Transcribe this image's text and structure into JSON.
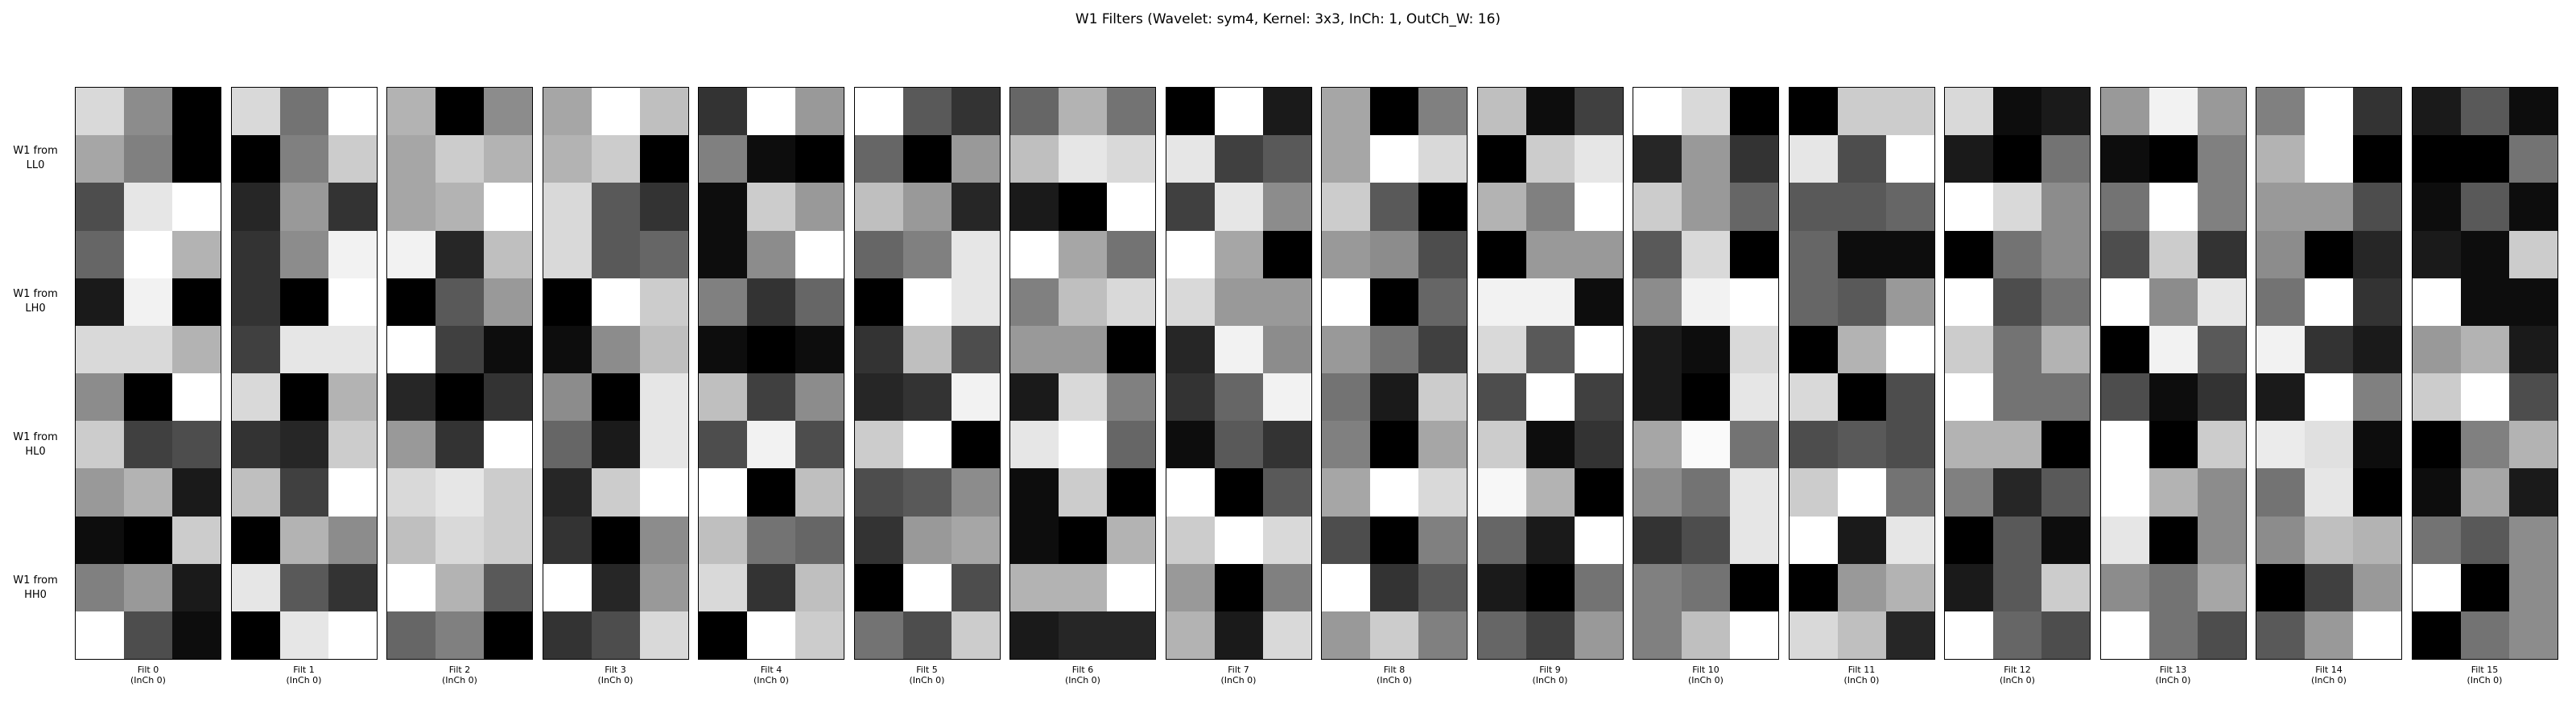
{
  "chart_data": {
    "type": "heatmap",
    "title": "W1 Filters (Wavelet: sym4, Kernel: 3x3, InCh: 1, OutCh_W: 16)",
    "colormap": "grayscale",
    "row_groups": [
      "W1 from\nLL0",
      "W1 from\nLH0",
      "W1 from\nHL0",
      "W1 from\nHH0"
    ],
    "filters": [
      {
        "label": "Filt 0",
        "sublabel": "(InCh 0)",
        "cells": [
          [
            0.85,
            0.55,
            0.0
          ],
          [
            0.65,
            0.5,
            0.0
          ],
          [
            0.3,
            0.9,
            1.0
          ],
          [
            0.4,
            1.0,
            0.7
          ],
          [
            0.1,
            0.95,
            0.0
          ],
          [
            0.85,
            0.85,
            0.7
          ],
          [
            0.55,
            0.0,
            1.0
          ],
          [
            0.8,
            0.25,
            0.3
          ],
          [
            0.6,
            0.7,
            0.1
          ],
          [
            0.05,
            0.0,
            0.8
          ],
          [
            0.5,
            0.6,
            0.1
          ],
          [
            1.0,
            0.3,
            0.05
          ]
        ]
      },
      {
        "label": "Filt 1",
        "sublabel": "(InCh 0)",
        "cells": [
          [
            0.85,
            0.45,
            1.0
          ],
          [
            0.0,
            0.5,
            0.8
          ],
          [
            0.15,
            0.6,
            0.2
          ],
          [
            0.2,
            0.55,
            0.95
          ],
          [
            0.2,
            0.0,
            1.0
          ],
          [
            0.25,
            0.9,
            0.9
          ],
          [
            0.85,
            0.0,
            0.7
          ],
          [
            0.2,
            0.15,
            0.8
          ],
          [
            0.75,
            0.25,
            1.0
          ],
          [
            0.0,
            0.7,
            0.55
          ],
          [
            0.9,
            0.35,
            0.2
          ],
          [
            0.0,
            0.9,
            1.0
          ]
        ]
      },
      {
        "label": "Filt 2",
        "sublabel": "(InCh 0)",
        "cells": [
          [
            0.7,
            0.0,
            0.55
          ],
          [
            0.65,
            0.8,
            0.7
          ],
          [
            0.65,
            0.7,
            1.0
          ],
          [
            0.95,
            0.15,
            0.75
          ],
          [
            0.0,
            0.35,
            0.6
          ],
          [
            1.0,
            0.25,
            0.05
          ],
          [
            0.15,
            0.0,
            0.2
          ],
          [
            0.6,
            0.2,
            1.0
          ],
          [
            0.85,
            0.9,
            0.8
          ],
          [
            0.75,
            0.85,
            0.8
          ],
          [
            1.0,
            0.7,
            0.35
          ],
          [
            0.4,
            0.5,
            0.0
          ]
        ]
      },
      {
        "label": "Filt 3",
        "sublabel": "(InCh 0)",
        "cells": [
          [
            0.65,
            1.0,
            0.75
          ],
          [
            0.7,
            0.8,
            0.0
          ],
          [
            0.85,
            0.35,
            0.2
          ],
          [
            0.85,
            0.35,
            0.4
          ],
          [
            0.0,
            1.0,
            0.8
          ],
          [
            0.05,
            0.55,
            0.75
          ],
          [
            0.55,
            0.0,
            0.9
          ],
          [
            0.4,
            0.1,
            0.9
          ],
          [
            0.15,
            0.8,
            1.0
          ],
          [
            0.2,
            0.0,
            0.55
          ],
          [
            1.0,
            0.15,
            0.6
          ],
          [
            0.2,
            0.3,
            0.85
          ]
        ]
      },
      {
        "label": "Filt 4",
        "sublabel": "(InCh 0)",
        "cells": [
          [
            0.2,
            1.0,
            0.6
          ],
          [
            0.5,
            0.05,
            0.0
          ],
          [
            0.05,
            0.8,
            0.6
          ],
          [
            0.05,
            0.55,
            1.0
          ],
          [
            0.5,
            0.2,
            0.4
          ],
          [
            0.05,
            0.0,
            0.05
          ],
          [
            0.75,
            0.25,
            0.55
          ],
          [
            0.3,
            0.95,
            0.3
          ],
          [
            1.0,
            0.0,
            0.75
          ],
          [
            0.75,
            0.45,
            0.4
          ],
          [
            0.85,
            0.2,
            0.75
          ],
          [
            0.0,
            1.0,
            0.8
          ]
        ]
      },
      {
        "label": "Filt 5",
        "sublabel": "(InCh 0)",
        "cells": [
          [
            1.0,
            0.35,
            0.2
          ],
          [
            0.4,
            0.0,
            0.6
          ],
          [
            0.75,
            0.6,
            0.15
          ],
          [
            0.4,
            0.5,
            0.9
          ],
          [
            0.0,
            1.0,
            0.9
          ],
          [
            0.2,
            0.75,
            0.3
          ],
          [
            0.15,
            0.2,
            0.95
          ],
          [
            0.8,
            1.0,
            0.0
          ],
          [
            0.3,
            0.35,
            0.55
          ],
          [
            0.2,
            0.6,
            0.65
          ],
          [
            0.0,
            1.0,
            0.3
          ],
          [
            0.45,
            0.3,
            0.8
          ]
        ]
      },
      {
        "label": "Filt 6",
        "sublabel": "(InCh 0)",
        "cells": [
          [
            0.4,
            0.7,
            0.45
          ],
          [
            0.75,
            0.9,
            0.85
          ],
          [
            0.1,
            0.0,
            1.0
          ],
          [
            1.0,
            0.65,
            0.45
          ],
          [
            0.5,
            0.75,
            0.85
          ],
          [
            0.6,
            0.6,
            0.0
          ],
          [
            0.1,
            0.85,
            0.5
          ],
          [
            0.9,
            1.0,
            0.4
          ],
          [
            0.05,
            0.8,
            0.0
          ],
          [
            0.05,
            0.0,
            0.7
          ],
          [
            0.7,
            0.7,
            1.0
          ],
          [
            0.1,
            0.15,
            0.15
          ]
        ]
      },
      {
        "label": "Filt 7",
        "sublabel": "(InCh 0)",
        "cells": [
          [
            0.0,
            1.0,
            0.1
          ],
          [
            0.9,
            0.25,
            0.35
          ],
          [
            0.25,
            0.9,
            0.55
          ],
          [
            1.0,
            0.65,
            0.0
          ],
          [
            0.85,
            0.6,
            0.6
          ],
          [
            0.15,
            0.95,
            0.55
          ],
          [
            0.2,
            0.4,
            0.95
          ],
          [
            0.05,
            0.35,
            0.2
          ],
          [
            1.0,
            0.0,
            0.35
          ],
          [
            0.8,
            1.0,
            0.85
          ],
          [
            0.6,
            0.0,
            0.5
          ],
          [
            0.7,
            0.1,
            0.85
          ]
        ]
      },
      {
        "label": "Filt 8",
        "sublabel": "(InCh 0)",
        "cells": [
          [
            0.65,
            0.0,
            0.5
          ],
          [
            0.65,
            1.0,
            0.85
          ],
          [
            0.8,
            0.35,
            0.0
          ],
          [
            0.6,
            0.55,
            0.3
          ],
          [
            1.0,
            0.0,
            0.4
          ],
          [
            0.6,
            0.45,
            0.25
          ],
          [
            0.45,
            0.1,
            0.8
          ],
          [
            0.5,
            0.0,
            0.65
          ],
          [
            0.65,
            1.0,
            0.85
          ],
          [
            0.3,
            0.0,
            0.5
          ],
          [
            1.0,
            0.2,
            0.35
          ],
          [
            0.6,
            0.8,
            0.5
          ]
        ]
      },
      {
        "label": "Filt 9",
        "sublabel": "(InCh 0)",
        "cells": [
          [
            0.75,
            0.05,
            0.25
          ],
          [
            0.0,
            0.8,
            0.9
          ],
          [
            0.7,
            0.5,
            1.0
          ],
          [
            0.0,
            0.6,
            0.6
          ],
          [
            0.95,
            0.95,
            0.05
          ],
          [
            0.85,
            0.35,
            1.0
          ],
          [
            0.3,
            1.0,
            0.25
          ],
          [
            0.8,
            0.05,
            0.2
          ],
          [
            0.97,
            0.7,
            0.0
          ],
          [
            0.4,
            0.1,
            1.0
          ],
          [
            0.1,
            0.0,
            0.45
          ],
          [
            0.4,
            0.25,
            0.6
          ]
        ]
      },
      {
        "label": "Filt 10",
        "sublabel": "(InCh 0)",
        "cells": [
          [
            1.0,
            0.85,
            0.0
          ],
          [
            0.15,
            0.6,
            0.2
          ],
          [
            0.8,
            0.6,
            0.4
          ],
          [
            0.35,
            0.85,
            0.0
          ],
          [
            0.55,
            0.95,
            1.0
          ],
          [
            0.1,
            0.05,
            0.85
          ],
          [
            0.1,
            0.0,
            0.9
          ],
          [
            0.65,
            0.98,
            0.45
          ],
          [
            0.55,
            0.45,
            0.9
          ],
          [
            0.2,
            0.3,
            0.9
          ],
          [
            0.5,
            0.45,
            0.0
          ],
          [
            0.5,
            0.75,
            1.0
          ]
        ]
      },
      {
        "label": "Filt 11",
        "sublabel": "(InCh 0)",
        "cells": [
          [
            0.0,
            0.8,
            0.8
          ],
          [
            0.9,
            0.3,
            1.0
          ],
          [
            0.35,
            0.35,
            0.4
          ],
          [
            0.4,
            0.05,
            0.05
          ],
          [
            0.4,
            0.35,
            0.6
          ],
          [
            0.0,
            0.7,
            1.0
          ],
          [
            0.85,
            0.0,
            0.3
          ],
          [
            0.3,
            0.35,
            0.3
          ],
          [
            0.8,
            1.0,
            0.45
          ],
          [
            1.0,
            0.1,
            0.9
          ],
          [
            0.0,
            0.6,
            0.7
          ],
          [
            0.85,
            0.75,
            0.15
          ]
        ]
      },
      {
        "label": "Filt 12",
        "sublabel": "(InCh 0)",
        "cells": [
          [
            0.85,
            0.05,
            0.1
          ],
          [
            0.1,
            0.0,
            0.45
          ],
          [
            1.0,
            0.85,
            0.55
          ],
          [
            0.0,
            0.45,
            0.55
          ],
          [
            1.0,
            0.3,
            0.45
          ],
          [
            0.8,
            0.45,
            0.7
          ],
          [
            1.0,
            0.45,
            0.45
          ],
          [
            0.7,
            0.7,
            0.0
          ],
          [
            0.5,
            0.15,
            0.35
          ],
          [
            0.0,
            0.35,
            0.05
          ],
          [
            0.1,
            0.35,
            0.8
          ],
          [
            1.0,
            0.4,
            0.3
          ]
        ]
      },
      {
        "label": "Filt 13",
        "sublabel": "(InCh 0)",
        "cells": [
          [
            0.6,
            0.95,
            0.6
          ],
          [
            0.05,
            0.0,
            0.5
          ],
          [
            0.45,
            1.0,
            0.5
          ],
          [
            0.3,
            0.8,
            0.2
          ],
          [
            1.0,
            0.55,
            0.9
          ],
          [
            0.0,
            0.95,
            0.35
          ],
          [
            0.3,
            0.05,
            0.2
          ],
          [
            1.0,
            0.0,
            0.8
          ],
          [
            1.0,
            0.7,
            0.55
          ],
          [
            0.9,
            0.0,
            0.55
          ],
          [
            0.55,
            0.45,
            0.65
          ],
          [
            1.0,
            0.45,
            0.3
          ]
        ]
      },
      {
        "label": "Filt 14",
        "sublabel": "(InCh 0)",
        "cells": [
          [
            0.5,
            1.0,
            0.2
          ],
          [
            0.7,
            1.0,
            0.0
          ],
          [
            0.6,
            0.6,
            0.3
          ],
          [
            0.55,
            0.0,
            0.15
          ],
          [
            0.45,
            1.0,
            0.2
          ],
          [
            0.95,
            0.2,
            0.1
          ],
          [
            0.1,
            1.0,
            0.5
          ],
          [
            0.92,
            0.88,
            0.05
          ],
          [
            0.45,
            0.9,
            0.0
          ],
          [
            0.55,
            0.75,
            0.7
          ],
          [
            0.0,
            0.25,
            0.6
          ],
          [
            0.35,
            0.6,
            1.0
          ]
        ]
      },
      {
        "label": "Filt 15",
        "sublabel": "(InCh 0)",
        "cells": [
          [
            0.1,
            0.35,
            0.05
          ],
          [
            0.0,
            0.0,
            0.45
          ],
          [
            0.05,
            0.35,
            0.05
          ],
          [
            0.1,
            0.05,
            0.8
          ],
          [
            1.0,
            0.05,
            0.05
          ],
          [
            0.6,
            0.7,
            0.1
          ],
          [
            0.8,
            1.0,
            0.3
          ],
          [
            0.0,
            0.5,
            0.7
          ],
          [
            0.05,
            0.65,
            0.1
          ],
          [
            0.45,
            0.35,
            0.55
          ],
          [
            1.0,
            0.0,
            0.55
          ],
          [
            0.0,
            0.45,
            0.55
          ]
        ]
      }
    ]
  }
}
